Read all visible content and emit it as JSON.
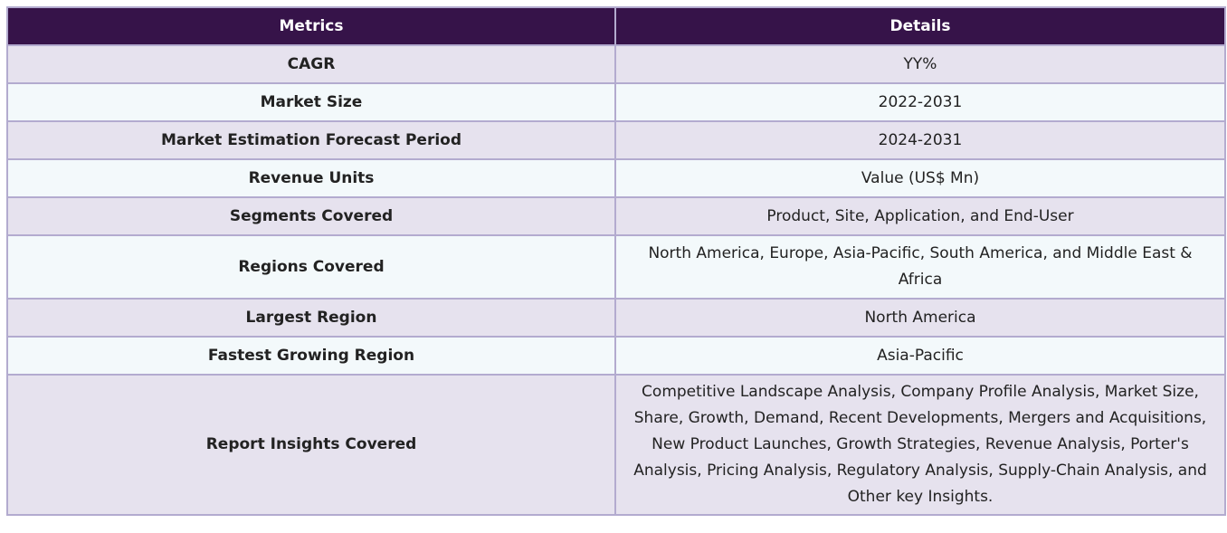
{
  "table": {
    "headers": [
      "Metrics",
      "Details"
    ],
    "rows": [
      {
        "metric": "CAGR",
        "details": "YY%"
      },
      {
        "metric": "Market Size",
        "details": "2022-2031"
      },
      {
        "metric": "Market Estimation Forecast Period",
        "details": "2024-2031"
      },
      {
        "metric": "Revenue Units",
        "details": "Value (US$ Mn)"
      },
      {
        "metric": "Segments Covered",
        "details": "Product, Site, Application, and End-User"
      },
      {
        "metric": "Regions Covered",
        "details": "North America, Europe, Asia-Pacific, South America, and Middle East & Africa"
      },
      {
        "metric": "Largest Region",
        "details": "North America"
      },
      {
        "metric": "Fastest Growing Region",
        "details": "Asia-Pacific"
      },
      {
        "metric": "Report Insights Covered",
        "details": "Competitive Landscape Analysis, Company Profile Analysis, Market Size, Share, Growth, Demand, Recent Developments, Mergers and Acquisitions, New Product Launches, Growth Strategies, Revenue Analysis, Porter's Analysis, Pricing Analysis, Regulatory Analysis, Supply-Chain Analysis, and Other key Insights."
      }
    ]
  },
  "colors": {
    "header_bg": "#361349",
    "header_text": "#ffffff",
    "row_odd_bg": "#e6e2ee",
    "row_even_bg": "#f3f9fb",
    "border": "#b3abcf"
  }
}
